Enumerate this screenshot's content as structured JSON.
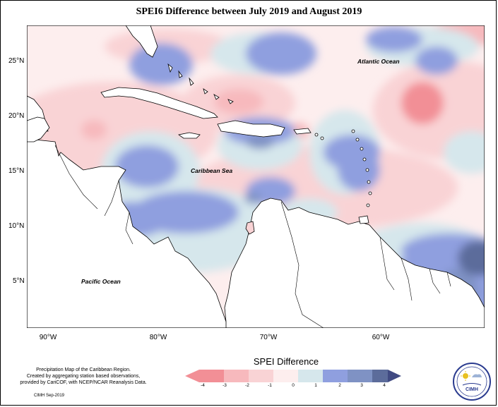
{
  "title": "SPEI6 Difference between July 2019 and August 2019",
  "lat_labels": [
    "25°N",
    "20°N",
    "15°N",
    "10°N",
    "5°N"
  ],
  "lon_labels": [
    "90°W",
    "80°W",
    "70°W",
    "60°W"
  ],
  "ocean_labels": {
    "atlantic": "Atlantic Ocean",
    "caribbean": "Caribbean Sea",
    "pacific": "Pacific Ocean"
  },
  "legend": {
    "title": "SPEI Difference",
    "ticks": [
      "-4",
      "-3",
      "-2",
      "-1",
      "0",
      "1",
      "2",
      "3",
      "4"
    ],
    "colors": [
      "#f28f96",
      "#f7b9bd",
      "#f9d3d5",
      "#fdeeee",
      "#d6e7ec",
      "#8f9fdf",
      "#7f92c4",
      "#5c6c9b",
      "#404a82"
    ]
  },
  "credit": {
    "line1": "Precipitation Map of the Caribbean Region.",
    "line2": "Created by aggregating station based observations,",
    "line3": "provided by CariCOF, with NCEP/NCAR Reanalysis Data.",
    "date": "CIMH Sep-2019"
  },
  "logo": {
    "text": "CIMH",
    "icon": "cimh-logo"
  }
}
